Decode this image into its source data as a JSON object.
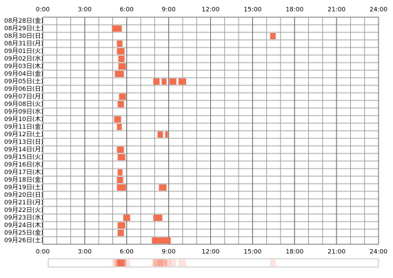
{
  "chart_data": {
    "type": "timeline",
    "categories": [
      "08月28日(金)",
      "08月29日(土)",
      "08月30日(日)",
      "08月31日(月)",
      "09月01日(火)",
      "09月02日(水)",
      "09月03日(木)",
      "09月04日(金)",
      "09月05日(土)",
      "09月06日(日)",
      "09月07日(月)",
      "09月08日(火)",
      "09月09日(水)",
      "09月10日(木)",
      "09月11日(金)",
      "09月12日(土)",
      "09月13日(日)",
      "09月14日(月)",
      "09月15日(火)",
      "09月16日(水)",
      "09月17日(木)",
      "09月18日(金)",
      "09月19日(土)",
      "09月20日(日)",
      "09月21日(月)",
      "09月22日(火)",
      "09月23日(水)",
      "09月24日(木)",
      "09月25日(金)",
      "09月26日(土)"
    ],
    "intervals": [
      [],
      [
        [
          4.95,
          5.65
        ]
      ],
      [
        [
          16.25,
          16.65
        ]
      ],
      [
        [
          5.3,
          5.7
        ]
      ],
      [
        [
          5.3,
          5.85
        ]
      ],
      [
        [
          5.4,
          5.85
        ]
      ],
      [
        [
          5.4,
          5.95
        ]
      ],
      [
        [
          5.15,
          5.8
        ]
      ],
      [
        [
          7.9,
          8.35
        ],
        [
          8.5,
          8.85
        ],
        [
          9.05,
          9.55
        ],
        [
          9.7,
          10.25
        ]
      ],
      [],
      [
        [
          5.45,
          5.95
        ]
      ],
      [
        [
          5.35,
          5.8
        ]
      ],
      [],
      [
        [
          5.1,
          5.6
        ]
      ],
      [
        [
          5.3,
          5.65
        ]
      ],
      [
        [
          8.2,
          8.6
        ],
        [
          8.75,
          8.95
        ]
      ],
      [],
      [
        [
          5.3,
          5.8
        ]
      ],
      [
        [
          5.35,
          5.9
        ]
      ],
      [],
      [
        [
          5.35,
          5.7
        ]
      ],
      [
        [
          5.3,
          5.75
        ]
      ],
      [
        [
          5.3,
          5.95
        ],
        [
          8.3,
          8.85
        ]
      ],
      [],
      [],
      [],
      [
        [
          5.75,
          6.25
        ],
        [
          7.9,
          8.55
        ]
      ],
      [
        [
          5.35,
          5.9
        ]
      ],
      [
        [
          5.35,
          5.8
        ]
      ],
      [
        [
          7.8,
          9.15
        ]
      ]
    ],
    "color": "#f07050",
    "xlim": [
      0,
      24
    ],
    "xticks": [
      {
        "value": 0,
        "label": "0:00"
      },
      {
        "value": 3,
        "label": "3:00"
      },
      {
        "value": 6,
        "label": "6:00"
      },
      {
        "value": 9,
        "label": "9:00"
      },
      {
        "value": 12,
        "label": "12:00"
      },
      {
        "value": 15,
        "label": "15:00"
      },
      {
        "value": 18,
        "label": "18:00"
      },
      {
        "value": 21,
        "label": "21:00"
      },
      {
        "value": 24,
        "label": "24:00"
      }
    ],
    "grid": true
  }
}
